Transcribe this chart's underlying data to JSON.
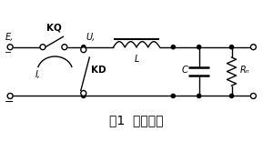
{
  "title": "图1  瞬态电流",
  "title_fontsize": 10,
  "bg_color": "#ffffff",
  "line_color": "#000000",
  "line_width": 1.0,
  "labels": {
    "E": "E,",
    "KQ": "KQ",
    "U": "U,",
    "KD": "KD",
    "IL": "I,",
    "L": "L",
    "C": "C",
    "R": "Rₙ"
  },
  "fig_width": 3.0,
  "fig_height": 1.78,
  "dpi": 100,
  "xlim": [
    0,
    10
  ],
  "ylim": [
    0,
    5.5
  ],
  "top_y": 4.0,
  "bot_y": 2.2
}
